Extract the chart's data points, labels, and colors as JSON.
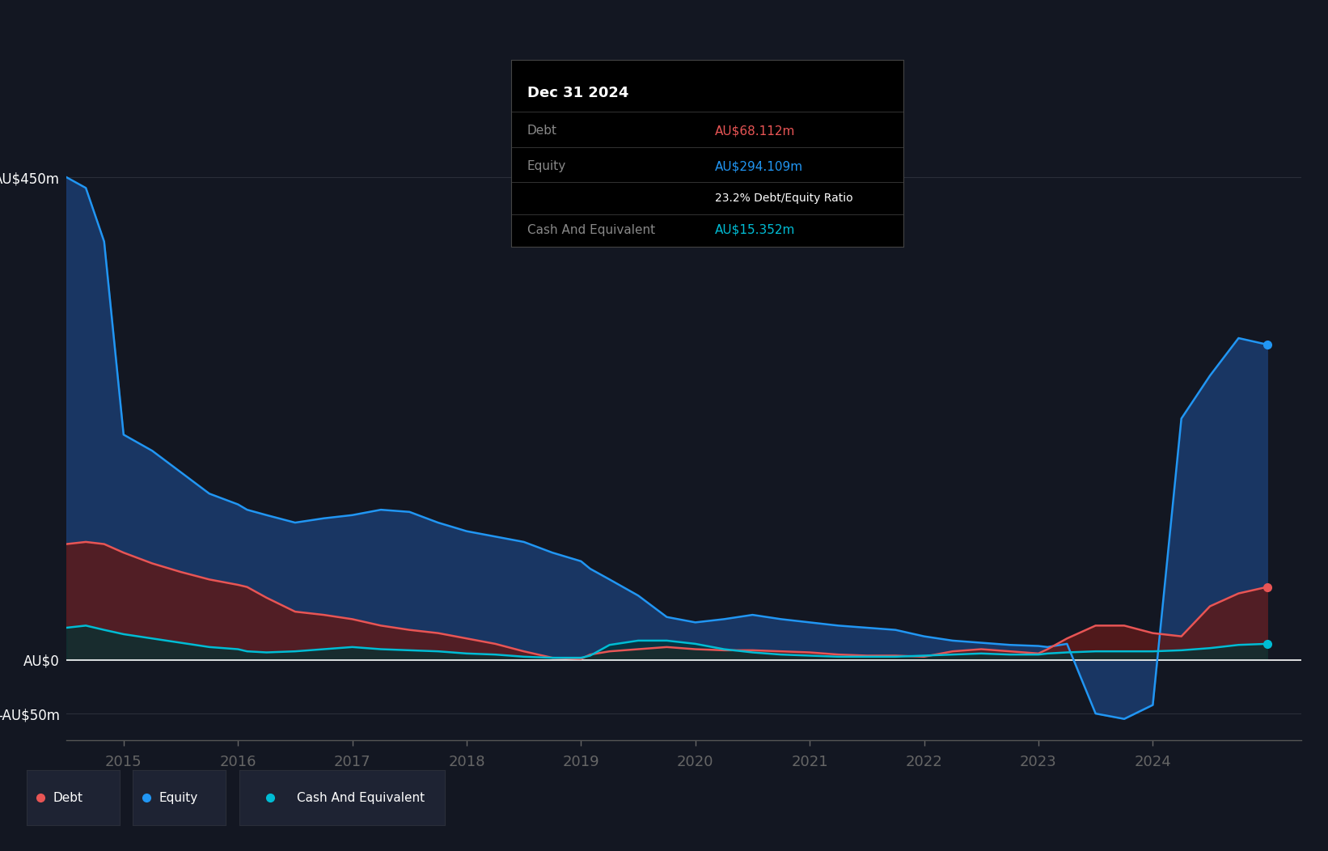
{
  "bg_color": "#131722",
  "plot_bg_color": "#131722",
  "grid_color": "#2a2e39",
  "debt_color": "#e85555",
  "equity_color": "#2196f3",
  "cash_color": "#00bcd4",
  "tooltip_title": "Dec 31 2024",
  "tooltip_debt_label": "Debt",
  "tooltip_debt_value": "AU$68.112m",
  "tooltip_equity_label": "Equity",
  "tooltip_equity_value": "AU$294.109m",
  "tooltip_ratio": "23.2% Debt/Equity Ratio",
  "tooltip_cash_label": "Cash And Equivalent",
  "tooltip_cash_value": "AU$15.352m",
  "legend_items": [
    "Debt",
    "Equity",
    "Cash And Equivalent"
  ],
  "ylim": [
    -75,
    520
  ],
  "xlim": [
    2014.5,
    2025.3
  ],
  "ytick_vals": [
    -50,
    0,
    450
  ],
  "ytick_labels": [
    "-AU$50m",
    "AU$0",
    "AU$450m"
  ],
  "xtick_vals": [
    2015,
    2016,
    2017,
    2018,
    2019,
    2020,
    2021,
    2022,
    2023,
    2024
  ],
  "dates": [
    2014.5,
    2014.67,
    2014.83,
    2015.0,
    2015.25,
    2015.5,
    2015.75,
    2016.0,
    2016.08,
    2016.25,
    2016.5,
    2016.75,
    2017.0,
    2017.25,
    2017.5,
    2017.75,
    2018.0,
    2018.25,
    2018.5,
    2018.75,
    2019.0,
    2019.08,
    2019.25,
    2019.5,
    2019.75,
    2020.0,
    2020.25,
    2020.5,
    2020.75,
    2021.0,
    2021.25,
    2021.5,
    2021.75,
    2022.0,
    2022.25,
    2022.5,
    2022.75,
    2023.0,
    2023.08,
    2023.25,
    2023.5,
    2023.75,
    2024.0,
    2024.25,
    2024.5,
    2024.75,
    2025.0
  ],
  "equity": [
    450,
    440,
    390,
    210,
    195,
    175,
    155,
    145,
    140,
    135,
    128,
    132,
    135,
    140,
    138,
    128,
    120,
    115,
    110,
    100,
    92,
    85,
    75,
    60,
    40,
    35,
    38,
    42,
    38,
    35,
    32,
    30,
    28,
    22,
    18,
    16,
    14,
    13,
    12,
    15,
    -50,
    -55,
    -42,
    225,
    265,
    300,
    294
  ],
  "debt": [
    108,
    110,
    108,
    100,
    90,
    82,
    75,
    70,
    68,
    58,
    45,
    42,
    38,
    32,
    28,
    25,
    20,
    15,
    8,
    2,
    1,
    5,
    8,
    10,
    12,
    10,
    9,
    9,
    8,
    7,
    5,
    4,
    4,
    3,
    8,
    10,
    8,
    6,
    10,
    20,
    32,
    32,
    25,
    22,
    50,
    62,
    68
  ],
  "cash": [
    30,
    32,
    28,
    24,
    20,
    16,
    12,
    10,
    8,
    7,
    8,
    10,
    12,
    10,
    9,
    8,
    6,
    5,
    3,
    2,
    2,
    4,
    14,
    18,
    18,
    15,
    10,
    7,
    5,
    4,
    3,
    3,
    3,
    4,
    5,
    6,
    5,
    5,
    6,
    7,
    8,
    8,
    8,
    9,
    11,
    14,
    15
  ]
}
